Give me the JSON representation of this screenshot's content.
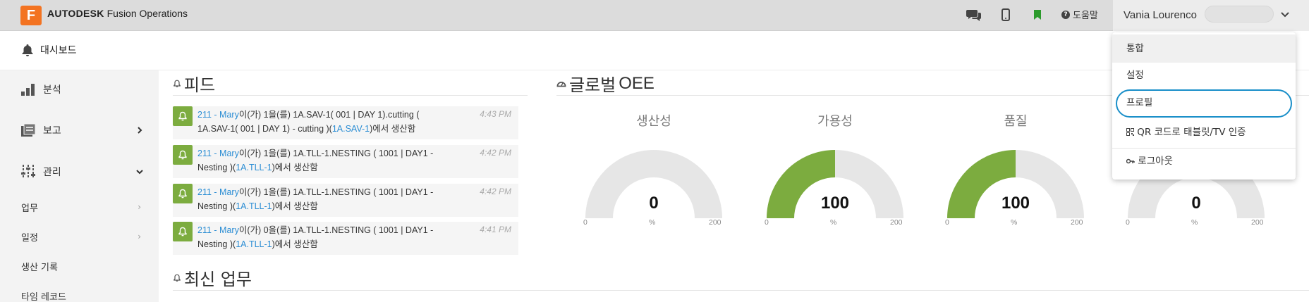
{
  "header": {
    "logo_letter": "F",
    "brand_bold": "AUTODESK",
    "brand_rest": " Fusion Operations",
    "help_label": "도움말",
    "user_name": "Vania Lourenco",
    "icons": [
      "chat-icon",
      "mobile-icon",
      "bookmark-icon",
      "help-icon",
      "chevron-down-icon"
    ]
  },
  "subheader": {
    "dashboard_label": "대시보드"
  },
  "sidebar": {
    "items": [
      {
        "label": "분석",
        "icon": "bar-chart-icon"
      },
      {
        "label": "보고",
        "icon": "report-icon"
      },
      {
        "label": "관리",
        "icon": "sliders-icon"
      }
    ],
    "subitems": [
      {
        "label": "업무"
      },
      {
        "label": "일정"
      },
      {
        "label": "생산 기록"
      },
      {
        "label": "타임 레코드"
      }
    ]
  },
  "feed": {
    "title": "피드",
    "items": [
      {
        "user": "211 - Mary",
        "mid": "이(가) 1을(를) 1A.SAV-1( 001 | DAY 1).cutting ( 1A.SAV-1( 001 | DAY 1) - cutting )(",
        "link": "1A.SAV-1",
        "end": ")에서 생산함",
        "time": "4:43 PM"
      },
      {
        "user": "211 - Mary",
        "mid": "이(가) 1을(를) 1A.TLL-1.NESTING ( 1001 | DAY1 - Nesting )(",
        "link": "1A.TLL-1",
        "end": ")에서 생산함",
        "time": "4:42 PM"
      },
      {
        "user": "211 - Mary",
        "mid": "이(가) 1을(를) 1A.TLL-1.NESTING ( 1001 | DAY1 - Nesting )(",
        "link": "1A.TLL-1",
        "end": ")에서 생산함",
        "time": "4:42 PM"
      },
      {
        "user": "211 - Mary",
        "mid": "이(가) 0을(를) 1A.TLL-1.NESTING ( 1001 | DAY1 - Nesting )(",
        "link": "1A.TLL-1",
        "end": ")에서 생산함",
        "time": "4:41 PM"
      }
    ]
  },
  "oee": {
    "title_ko": "글로벌",
    "title_en": " OEE",
    "gauges": [
      {
        "label": "생산성",
        "value": "0",
        "fraction": 0,
        "min": "0",
        "max": "200",
        "unit": "%"
      },
      {
        "label": "가용성",
        "value": "100",
        "fraction": 0.5,
        "min": "0",
        "max": "200",
        "unit": "%"
      },
      {
        "label": "품질",
        "value": "100",
        "fraction": 0.5,
        "min": "0",
        "max": "200",
        "unit": "%"
      },
      {
        "label": "",
        "value": "0",
        "fraction": 0,
        "min": "0",
        "max": "200",
        "unit": "%"
      }
    ]
  },
  "latest": {
    "title": "최신 업무"
  },
  "user_menu": {
    "items": [
      {
        "label": "통합"
      },
      {
        "label": "설정"
      },
      {
        "label": "프로필"
      },
      {
        "label": "QR 코드로 태블릿/TV 인증",
        "icon": "qr-icon"
      },
      {
        "label": "로그아웃",
        "icon": "key-icon"
      }
    ]
  },
  "colors": {
    "accent_green": "#7cac3f",
    "link_blue": "#2a8dd4",
    "focus_blue": "#1a8fc9",
    "logo_orange": "#f37321"
  }
}
